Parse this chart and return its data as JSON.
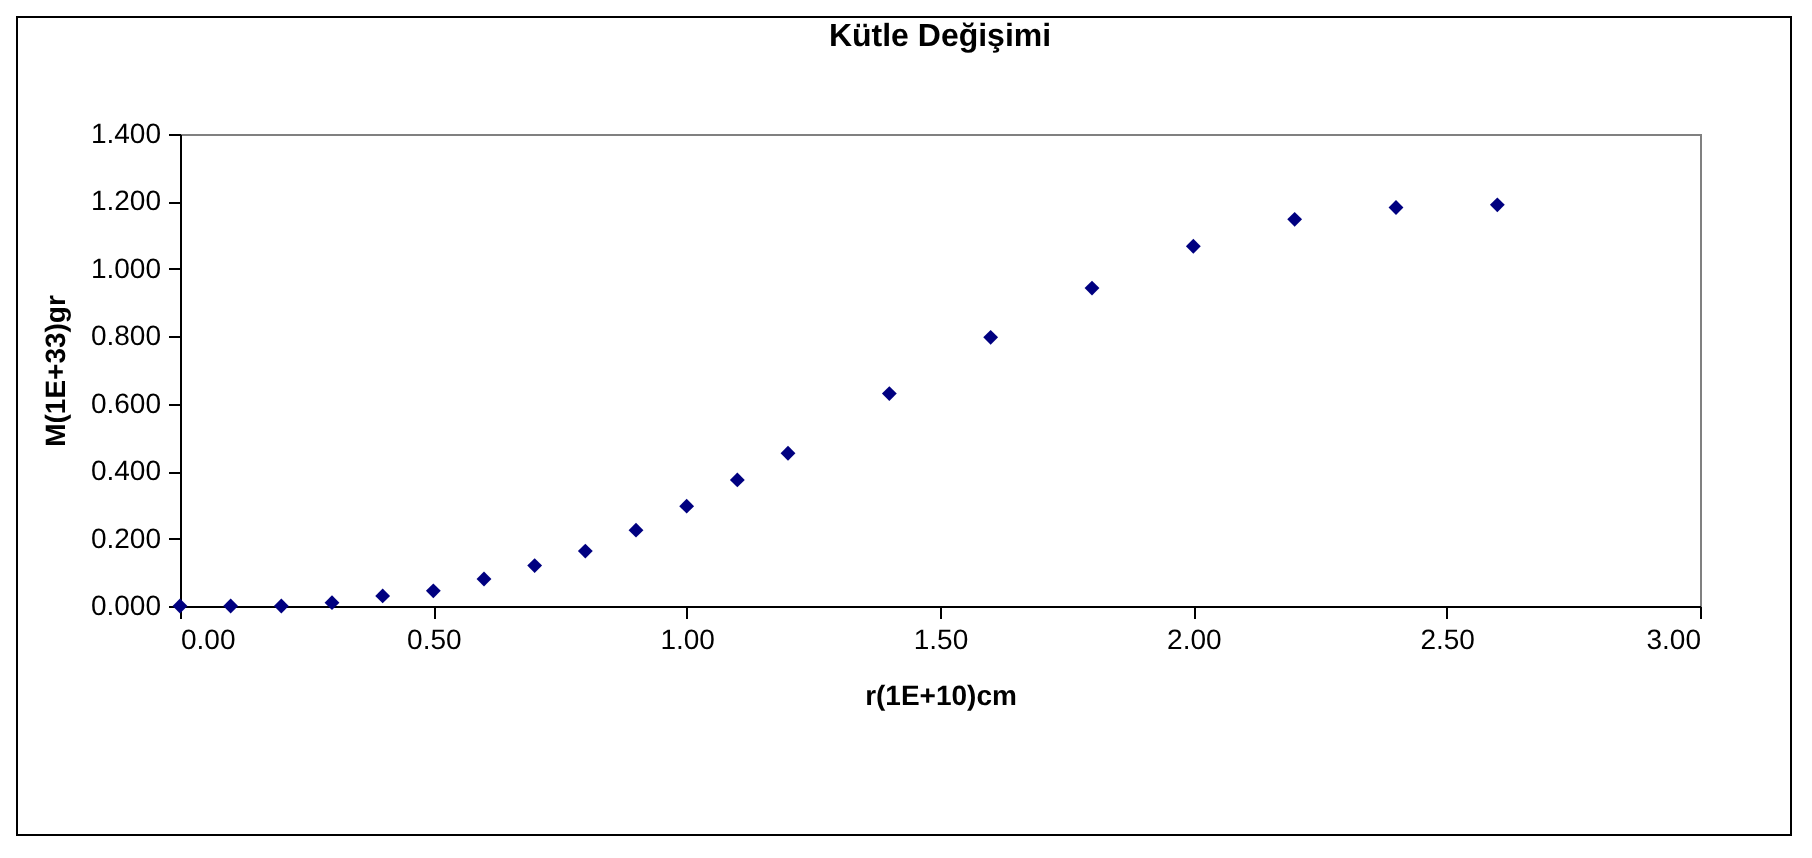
{
  "chart_data": {
    "type": "scatter",
    "title": "Kütle Değişimi",
    "xlabel": "r(1E+10)cm",
    "ylabel": "M(1E+33)gr",
    "x": [
      0,
      0.1,
      0.2,
      0.3,
      0.4,
      0.5,
      0.6,
      0.7,
      0.8,
      0.9,
      1.0,
      1.1,
      1.2,
      1.4,
      1.6,
      1.8,
      2.0,
      2.2,
      2.4,
      2.6
    ],
    "series": [
      {
        "color": "#000080",
        "values": [
          0,
          0,
          0,
          0.01,
          0.03,
          0.045,
          0.08,
          0.12,
          0.163,
          0.225,
          0.296,
          0.374,
          0.453,
          0.63,
          0.797,
          0.943,
          1.067,
          1.147,
          1.182,
          1.19
        ]
      }
    ],
    "xlim": [
      0,
      3
    ],
    "xticks": [
      {
        "value": 0,
        "label": "0.00"
      },
      {
        "value": 0.5,
        "label": "0.50"
      },
      {
        "value": 1,
        "label": "1.00"
      },
      {
        "value": 1.5,
        "label": "1.50"
      },
      {
        "value": 2,
        "label": "2.00"
      },
      {
        "value": 2.5,
        "label": "2.50"
      },
      {
        "value": 3,
        "label": "3.00"
      }
    ],
    "ylim": [
      0,
      1.4
    ],
    "yticks": [
      {
        "value": 0,
        "label": "0.000"
      },
      {
        "value": 0.2,
        "label": "0.200"
      },
      {
        "value": 0.4,
        "label": "0.400"
      },
      {
        "value": 0.6,
        "label": "0.600"
      },
      {
        "value": 0.8,
        "label": "0.800"
      },
      {
        "value": 1.0,
        "label": "1.000"
      },
      {
        "value": 1.2,
        "label": "1.200"
      },
      {
        "value": 1.4,
        "label": "1.400"
      }
    ],
    "marker": "diamond",
    "grid": false,
    "legend": false
  }
}
